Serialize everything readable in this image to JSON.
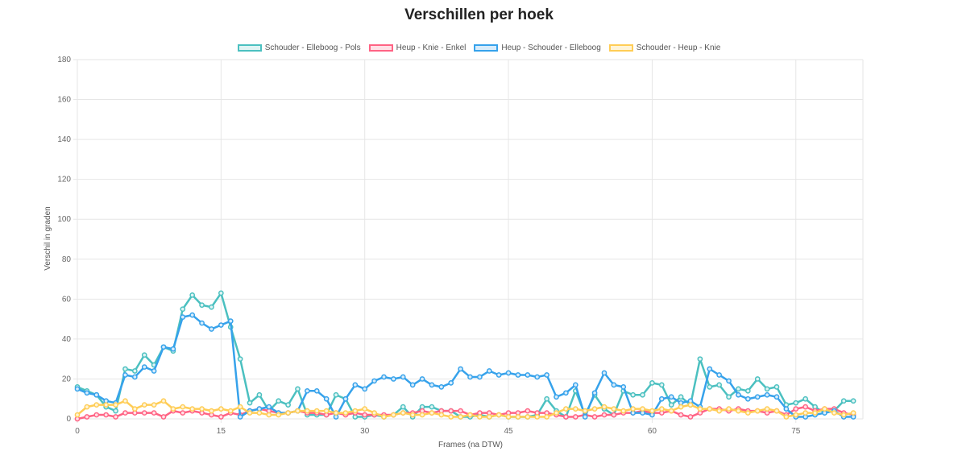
{
  "chart_data": {
    "type": "line",
    "title": "Verschillen per hoek",
    "xlabel": "Frames (na DTW)",
    "ylabel": "Verschil in graden",
    "ylim": [
      0,
      180
    ],
    "xlim": [
      0,
      82
    ],
    "yticks": [
      0,
      20,
      40,
      60,
      80,
      100,
      120,
      140,
      160,
      180
    ],
    "xticks": [
      0,
      15,
      30,
      45,
      60,
      75
    ],
    "grid": true,
    "legend_position": "top",
    "series": [
      {
        "name": "Schouder - Elleboog - Pols",
        "color": "#4bc0c0",
        "fill": "#dff4f4",
        "values": [
          16,
          14,
          12,
          6,
          4,
          25,
          24,
          32,
          27,
          36,
          34,
          55,
          62,
          57,
          56,
          63,
          46,
          30,
          8,
          12,
          4,
          9,
          7,
          15,
          2,
          2,
          2,
          12,
          10,
          1,
          1,
          2,
          1,
          2,
          6,
          1,
          6,
          6,
          4,
          4,
          1,
          1,
          2,
          1,
          2,
          1,
          1,
          1,
          2,
          10,
          4,
          1,
          14,
          2,
          12,
          5,
          2,
          14,
          12,
          12,
          18,
          17,
          7,
          11,
          7,
          30,
          16,
          17,
          11,
          15,
          14,
          20,
          15,
          16,
          7,
          8,
          10,
          6,
          3,
          4,
          9,
          9
        ]
      },
      {
        "name": "Heup - Knie - Enkel",
        "color": "#ff6384",
        "fill": "#ffe0e6",
        "values": [
          0,
          1,
          2,
          2,
          1,
          3,
          3,
          3,
          3,
          1,
          4,
          3,
          4,
          3,
          2,
          1,
          3,
          2,
          4,
          5,
          4,
          3,
          3,
          4,
          3,
          3,
          2,
          3,
          2,
          3,
          2,
          2,
          2,
          2,
          3,
          3,
          4,
          3,
          4,
          4,
          4,
          2,
          3,
          3,
          2,
          3,
          3,
          4,
          3,
          3,
          2,
          1,
          1,
          2,
          1,
          2,
          2,
          3,
          3,
          4,
          3,
          3,
          4,
          2,
          1,
          3,
          5,
          5,
          4,
          5,
          4,
          4,
          3,
          4,
          2,
          5,
          6,
          4,
          5,
          5,
          3,
          2
        ]
      },
      {
        "name": "Heup - Schouder - Elleboog",
        "color": "#36a2eb",
        "fill": "#d7ecfb",
        "values": [
          15,
          13,
          12,
          9,
          8,
          22,
          21,
          26,
          24,
          36,
          35,
          51,
          52,
          48,
          45,
          47,
          49,
          1,
          4,
          5,
          6,
          3,
          3,
          4,
          14,
          14,
          10,
          1,
          10,
          17,
          15,
          19,
          21,
          20,
          21,
          17,
          20,
          17,
          16,
          18,
          25,
          21,
          21,
          24,
          22,
          23,
          22,
          22,
          21,
          22,
          11,
          13,
          17,
          1,
          13,
          23,
          17,
          16,
          3,
          3,
          2,
          10,
          11,
          8,
          9,
          6,
          25,
          22,
          19,
          12,
          10,
          11,
          12,
          11,
          5,
          1,
          1,
          2,
          3,
          4,
          1,
          1
        ]
      },
      {
        "name": "Schouder - Heup - Knie",
        "color": "#ffcd56",
        "fill": "#fff4d6",
        "values": [
          2,
          6,
          7,
          7,
          7,
          9,
          5,
          7,
          7,
          9,
          5,
          6,
          5,
          5,
          4,
          5,
          4,
          6,
          3,
          3,
          2,
          2,
          3,
          4,
          4,
          4,
          4,
          3,
          3,
          4,
          5,
          3,
          1,
          2,
          3,
          2,
          2,
          3,
          2,
          1,
          1,
          2,
          1,
          1,
          2,
          1,
          1,
          1,
          1,
          1,
          3,
          5,
          5,
          4,
          5,
          6,
          5,
          4,
          5,
          5,
          4,
          5,
          4,
          6,
          7,
          5,
          5,
          4,
          5,
          4,
          3,
          4,
          5,
          4,
          1,
          2,
          3,
          3,
          5,
          3,
          2,
          3
        ]
      }
    ]
  }
}
